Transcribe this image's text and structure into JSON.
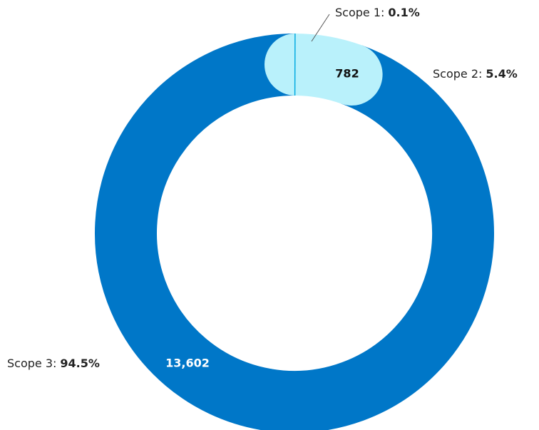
{
  "chart_data": {
    "type": "donut",
    "categories": [
      "Scope 1:",
      "Scope 2:",
      "Scope 3:"
    ],
    "values": [
      0.1,
      5.4,
      94.5
    ],
    "value_labels": [
      "0.1%",
      "5.4%",
      "94.5%"
    ],
    "amounts": [
      null,
      782,
      13602
    ],
    "amount_labels": [
      null,
      "782",
      "13,602"
    ],
    "colors": [
      "#00a9e0",
      "#b9f1fb",
      "#0077c8"
    ]
  }
}
